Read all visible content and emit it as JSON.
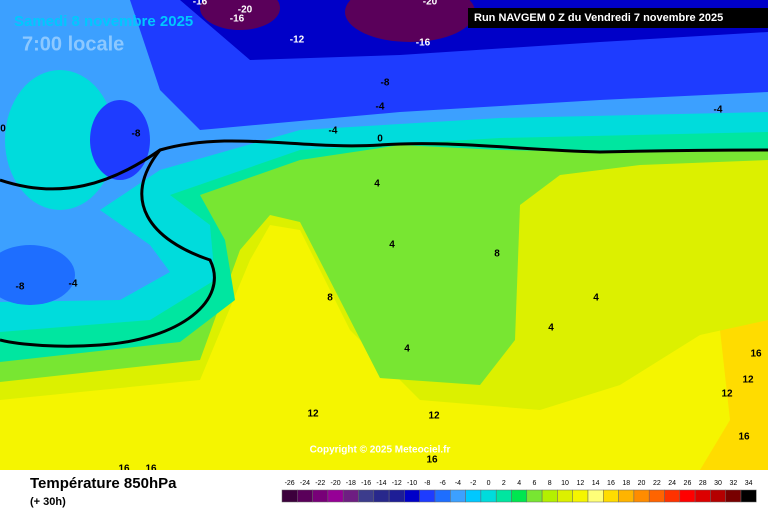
{
  "header": {
    "date": "Samedi 8 novembre 2025",
    "time": "7:00 locale",
    "run": "Run NAVGEM 0 Z du Vendredi 7 novembre 2025"
  },
  "map": {
    "contour_labels": [
      -16,
      -20,
      -16,
      -20,
      -12,
      -16,
      -8,
      -4,
      -4,
      -4,
      0,
      -8,
      0,
      4,
      4,
      8,
      -8,
      -4,
      8,
      4,
      4,
      4,
      16,
      12,
      12,
      12,
      12,
      16,
      16,
      16,
      16
    ],
    "copyright": "Copyright © 2025 Meteociel.fr"
  },
  "footer": {
    "title": "Température 850hPa",
    "lead": "(+ 30h)"
  },
  "scale": {
    "values": [
      -26,
      -24,
      -22,
      -20,
      -18,
      -16,
      -14,
      -12,
      -10,
      -8,
      -6,
      -4,
      -2,
      0,
      2,
      4,
      6,
      8,
      10,
      12,
      14,
      16,
      18,
      20,
      22,
      24,
      26,
      28,
      30,
      32,
      34
    ],
    "colors": [
      "#3c003c",
      "#5a005a",
      "#780078",
      "#960096",
      "#6e1e82",
      "#3c3c8c",
      "#28288c",
      "#1e1e96",
      "#0000c8",
      "#1e3cff",
      "#1e6eff",
      "#3ca0ff",
      "#00c8ff",
      "#00dcdc",
      "#00e6a0",
      "#00e650",
      "#78e632",
      "#b4f000",
      "#dcf000",
      "#f5f500",
      "#ffff78",
      "#ffdc00",
      "#ffb400",
      "#ff8c00",
      "#ff6400",
      "#ff3200",
      "#ff0000",
      "#dc0000",
      "#b40000",
      "#780000",
      "#000000"
    ]
  }
}
